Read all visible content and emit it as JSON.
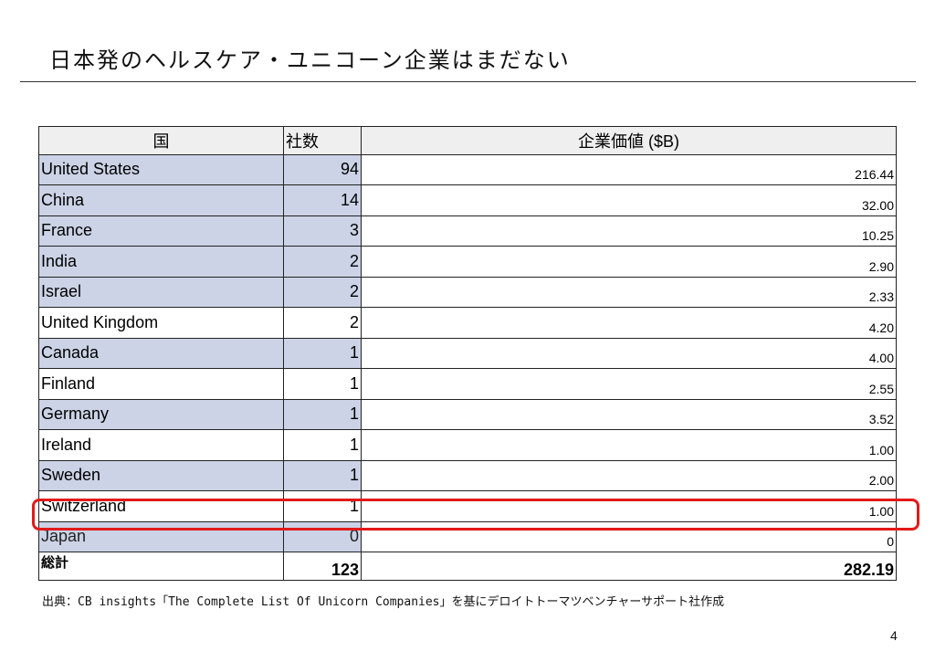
{
  "title": "日本発のヘルスケア・ユニコーン企業はまだない",
  "table": {
    "headers": {
      "country": "国",
      "count": "社数",
      "value": "企業価値 ($B)"
    },
    "rows": [
      {
        "country": "United States",
        "count": "94",
        "value": "216.44"
      },
      {
        "country": "China",
        "count": "14",
        "value": "32.00"
      },
      {
        "country": "France",
        "count": "3",
        "value": "10.25"
      },
      {
        "country": "India",
        "count": "2",
        "value": "2.90"
      },
      {
        "country": "Israel",
        "count": "2",
        "value": "2.33"
      },
      {
        "country": "United Kingdom",
        "count": "2",
        "value": "4.20"
      },
      {
        "country": "Canada",
        "count": "1",
        "value": "4.00"
      },
      {
        "country": "Finland",
        "count": "1",
        "value": "2.55"
      },
      {
        "country": "Germany",
        "count": "1",
        "value": "3.52"
      },
      {
        "country": "Ireland",
        "count": "1",
        "value": "1.00"
      },
      {
        "country": "Sweden",
        "count": "1",
        "value": "2.00"
      },
      {
        "country": "Switzerland",
        "count": "1",
        "value": "1.00"
      },
      {
        "country": "Japan",
        "count": "0",
        "value": "0"
      }
    ],
    "total": {
      "label": "総計",
      "count": "123",
      "value": "282.19"
    }
  },
  "highlight_color": "#e21a1a",
  "source": "出典：CB insights「The Complete List Of Unicorn Companies」を基にデロイトトーマツベンチャーサポート社作成",
  "page_number": "4"
}
